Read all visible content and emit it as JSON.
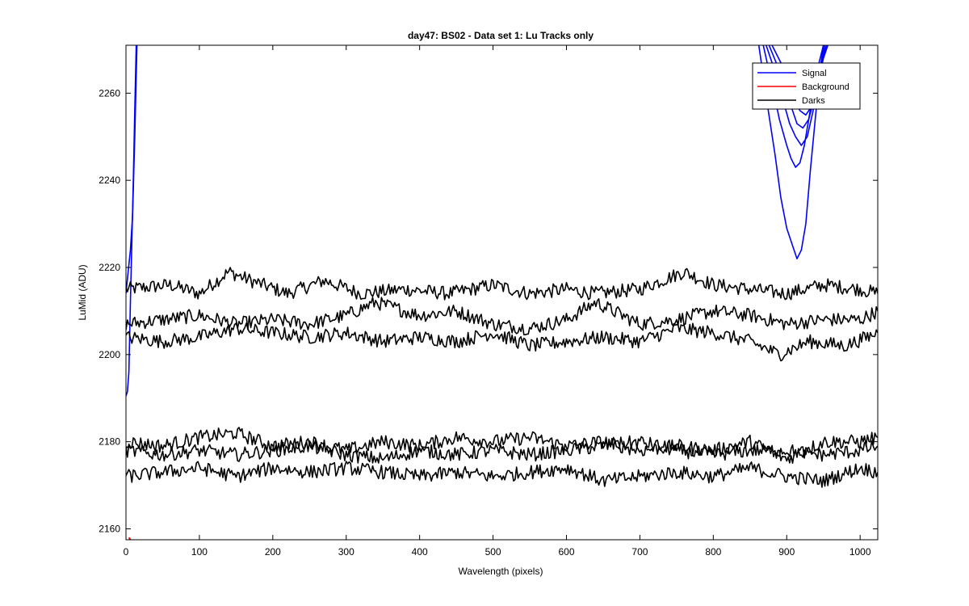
{
  "chart_data": {
    "type": "line",
    "title": "day47: BS02 - Data set 1: Lu Tracks only",
    "xlabel": "Wavelength (pixels)",
    "ylabel": "LuMid (ADU)",
    "xlim": [
      0,
      1024
    ],
    "ylim": [
      2157.5,
      2271
    ],
    "xticks": [
      0,
      100,
      200,
      300,
      400,
      500,
      600,
      700,
      800,
      900,
      1000
    ],
    "yticks": [
      2160,
      2180,
      2200,
      2220,
      2240,
      2260
    ],
    "grid": false,
    "legend_position": "top-right",
    "legend": [
      {
        "name": "Signal",
        "color": "#0000ff"
      },
      {
        "name": "Background",
        "color": "#ff0000"
      },
      {
        "name": "Darks",
        "color": "#000000"
      }
    ],
    "series": [
      {
        "group": "Signal",
        "color": "#0000ff",
        "x": [
          0,
          2,
          4,
          6,
          8,
          10,
          12,
          14
        ],
        "y": [
          2190.5,
          2191.5,
          2196,
          2212,
          2226,
          2240,
          2256,
          2271
        ]
      },
      {
        "group": "Signal",
        "color": "#0000ff",
        "x": [
          0,
          3,
          6,
          9,
          12,
          15
        ],
        "y": [
          2214,
          2219,
          2224,
          2232,
          2250,
          2271
        ]
      },
      {
        "group": "Signal",
        "color": "#0000ff",
        "x": [
          862,
          874,
          884,
          892,
          900,
          908,
          914,
          920,
          926,
          932,
          940,
          946,
          950
        ],
        "y": [
          2271,
          2257,
          2246,
          2236,
          2229,
          2225,
          2222,
          2224,
          2230,
          2242,
          2256,
          2266,
          2271
        ]
      },
      {
        "group": "Signal",
        "color": "#0000ff",
        "x": [
          868,
          880,
          890,
          900,
          906,
          912,
          918,
          924,
          930,
          938,
          944,
          950
        ],
        "y": [
          2271,
          2262,
          2254,
          2248,
          2245,
          2243,
          2244,
          2248,
          2254,
          2262,
          2267,
          2271
        ]
      },
      {
        "group": "Signal",
        "color": "#0000ff",
        "x": [
          872,
          884,
          894,
          904,
          912,
          920,
          928,
          936,
          944,
          952
        ],
        "y": [
          2271,
          2265,
          2259,
          2253,
          2250,
          2248,
          2250,
          2256,
          2264,
          2271
        ]
      },
      {
        "group": "Signal",
        "color": "#0000ff",
        "x": [
          876,
          888,
          898,
          906,
          914,
          922,
          930,
          938,
          946,
          954
        ],
        "y": [
          2271,
          2266,
          2261,
          2257,
          2253,
          2252,
          2254,
          2259,
          2266,
          2271
        ]
      },
      {
        "group": "Signal",
        "color": "#0000ff",
        "x": [
          880,
          892,
          902,
          910,
          918,
          926,
          934,
          942,
          950,
          956
        ],
        "y": [
          2271,
          2267,
          2263,
          2259,
          2256,
          2255,
          2257,
          2262,
          2268,
          2271
        ]
      },
      {
        "group": "Background",
        "color": "#ff0000",
        "x": [
          4,
          6
        ],
        "y": [
          2158,
          2157.5
        ]
      },
      {
        "group": "Darks",
        "color": "#000000",
        "x": [
          0,
          60,
          100,
          140,
          170,
          220,
          270,
          320,
          380,
          440,
          500,
          550,
          600,
          640,
          700,
          760,
          800,
          850,
          900,
          950,
          1000,
          1024
        ],
        "y": [
          2215,
          2216,
          2214,
          2219,
          2217,
          2214,
          2217,
          2214,
          2215,
          2214,
          2216,
          2214,
          2215,
          2214,
          2215,
          2219,
          2216,
          2215,
          2214,
          2216,
          2215,
          2214
        ]
      },
      {
        "group": "Darks",
        "color": "#000000",
        "x": [
          0,
          50,
          100,
          150,
          200,
          250,
          300,
          340,
          400,
          450,
          500,
          550,
          600,
          640,
          700,
          750,
          800,
          850,
          900,
          950,
          1000,
          1024
        ],
        "y": [
          2207,
          2208,
          2209,
          2207,
          2208,
          2207,
          2209,
          2212,
          2209,
          2210,
          2207,
          2206,
          2208,
          2212,
          2207,
          2208,
          2210,
          2209,
          2207,
          2208,
          2208,
          2210
        ]
      },
      {
        "group": "Darks",
        "color": "#000000",
        "x": [
          0,
          50,
          100,
          150,
          200,
          250,
          300,
          350,
          400,
          450,
          500,
          550,
          600,
          650,
          700,
          750,
          800,
          850,
          890,
          930,
          980,
          1024
        ],
        "y": [
          2204,
          2203,
          2204,
          2206,
          2205,
          2204,
          2205,
          2203,
          2204,
          2203,
          2205,
          2202,
          2203,
          2204,
          2203,
          2206,
          2205,
          2203,
          2200,
          2203,
          2202,
          2205
        ]
      },
      {
        "group": "Darks",
        "color": "#000000",
        "x": [
          0,
          50,
          100,
          150,
          200,
          250,
          300,
          350,
          400,
          450,
          500,
          550,
          600,
          650,
          700,
          750,
          800,
          850,
          900,
          950,
          1000,
          1024
        ],
        "y": [
          2180,
          2179,
          2181,
          2182,
          2179,
          2180,
          2178,
          2180,
          2179,
          2181,
          2180,
          2181,
          2179,
          2180,
          2178,
          2179,
          2178,
          2180,
          2176,
          2180,
          2180,
          2181
        ]
      },
      {
        "group": "Darks",
        "color": "#000000",
        "x": [
          0,
          50,
          100,
          150,
          200,
          250,
          300,
          350,
          400,
          450,
          500,
          550,
          600,
          650,
          700,
          750,
          800,
          850,
          900,
          950,
          1000,
          1024
        ],
        "y": [
          2178,
          2177,
          2178,
          2177,
          2178,
          2179,
          2177,
          2176,
          2178,
          2177,
          2178,
          2177,
          2178,
          2179,
          2180,
          2178,
          2177,
          2178,
          2178,
          2177,
          2178,
          2179
        ]
      },
      {
        "group": "Darks",
        "color": "#000000",
        "x": [
          0,
          50,
          100,
          150,
          200,
          250,
          300,
          350,
          400,
          450,
          500,
          550,
          600,
          650,
          700,
          750,
          800,
          850,
          900,
          950,
          1000,
          1024
        ],
        "y": [
          2172,
          2173,
          2174,
          2172,
          2174,
          2173,
          2174,
          2173,
          2172,
          2173,
          2172,
          2173,
          2174,
          2171,
          2172,
          2173,
          2172,
          2174,
          2172,
          2171,
          2174,
          2173
        ]
      }
    ]
  }
}
